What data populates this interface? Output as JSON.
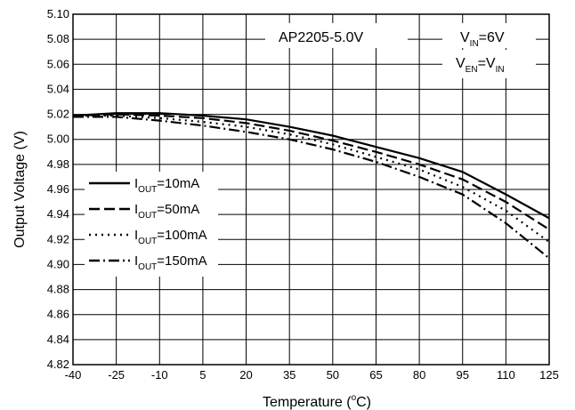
{
  "chart_data": {
    "type": "line",
    "xlabel": "Temperature (",
    "xlabel_sup": "o",
    "xlabel_end": "C)",
    "ylabel": "Output Voltage (V)",
    "xlim": [
      -40,
      125
    ],
    "ylim": [
      4.82,
      5.1
    ],
    "x_ticks": [
      -40,
      -25,
      -10,
      5,
      20,
      35,
      50,
      65,
      80,
      95,
      110,
      125
    ],
    "y_ticks": [
      "4.82",
      "4.84",
      "4.86",
      "4.88",
      "4.90",
      "4.92",
      "4.94",
      "4.96",
      "4.98",
      "5.00",
      "5.02",
      "5.04",
      "5.06",
      "5.08",
      "5.10"
    ],
    "grid": true,
    "annotations": {
      "part": "AP2205-5.0V",
      "vin_main": "V",
      "vin_sub": "IN",
      "vin_rest": "=6V",
      "ven_main": "V",
      "ven_sub": "EN",
      "ven_eq": "=V",
      "ven_sub2": "IN"
    },
    "legend_placement": "left",
    "series": [
      {
        "name_main": "I",
        "name_sub": "OUT",
        "name_rest": "=10mA",
        "style": "solid",
        "x": [
          -40,
          -25,
          -10,
          5,
          20,
          35,
          50,
          65,
          80,
          95,
          110,
          125
        ],
        "y": [
          5.019,
          5.021,
          5.021,
          5.019,
          5.016,
          5.01,
          5.003,
          4.994,
          4.985,
          4.974,
          4.956,
          4.937
        ]
      },
      {
        "name_main": "I",
        "name_sub": "OUT",
        "name_rest": "=50mA",
        "style": "dashed",
        "x": [
          -40,
          -25,
          -10,
          5,
          20,
          35,
          50,
          65,
          80,
          95,
          110,
          125
        ],
        "y": [
          5.019,
          5.02,
          5.019,
          5.017,
          5.013,
          5.007,
          4.999,
          4.99,
          4.98,
          4.968,
          4.95,
          4.928
        ]
      },
      {
        "name_main": "I",
        "name_sub": "OUT",
        "name_rest": "=100mA",
        "style": "dotted",
        "x": [
          -40,
          -25,
          -10,
          5,
          20,
          35,
          50,
          65,
          80,
          95,
          110,
          125
        ],
        "y": [
          5.019,
          5.019,
          5.017,
          5.014,
          5.01,
          5.004,
          4.996,
          4.986,
          4.976,
          4.962,
          4.943,
          4.918
        ]
      },
      {
        "name_main": "I",
        "name_sub": "OUT",
        "name_rest": "=150mA",
        "style": "dashdot",
        "x": [
          -40,
          -25,
          -10,
          5,
          20,
          35,
          50,
          65,
          80,
          95,
          110,
          125
        ],
        "y": [
          5.018,
          5.018,
          5.015,
          5.011,
          5.006,
          5.0,
          4.992,
          4.982,
          4.97,
          4.956,
          4.933,
          4.905
        ]
      }
    ]
  }
}
